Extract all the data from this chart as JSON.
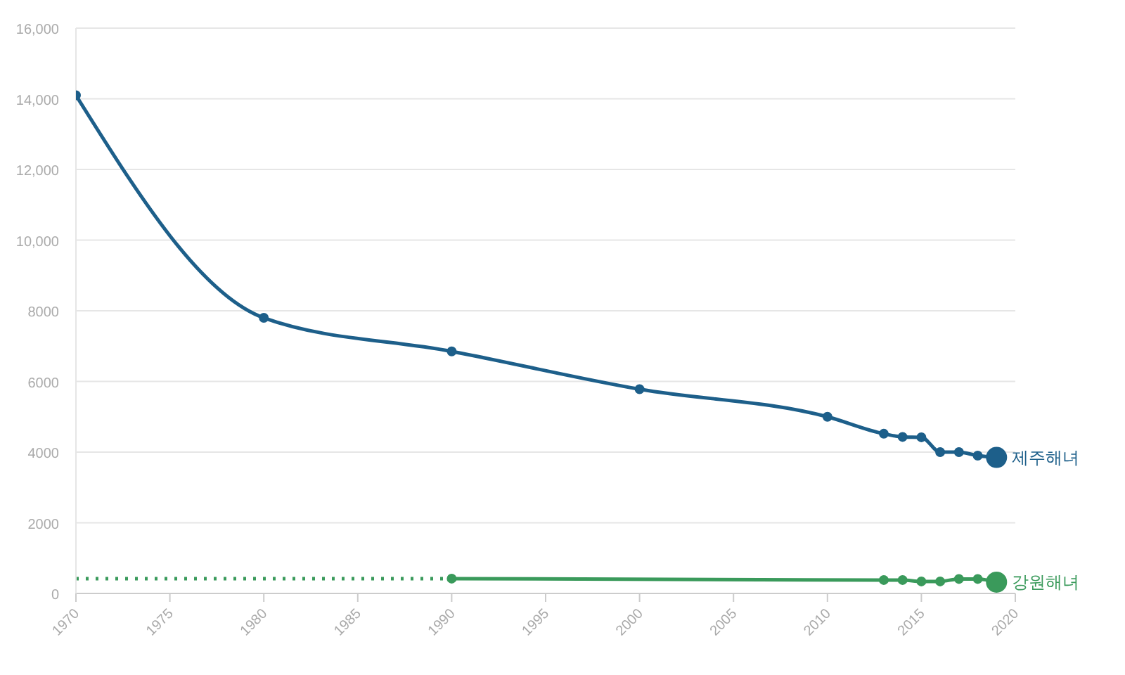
{
  "chart_data": {
    "type": "line",
    "xlim": [
      1970,
      2020
    ],
    "xticks": [
      1970,
      1975,
      1980,
      1985,
      1990,
      1995,
      2000,
      2005,
      2010,
      2015,
      2020
    ],
    "ylim": [
      0,
      16000
    ],
    "yticks": [
      0,
      2000,
      4000,
      6000,
      8000,
      {
        "value": 10000,
        "label": "10,000"
      },
      {
        "value": 12000,
        "label": "12,000"
      },
      {
        "value": 14000,
        "label": "14,000"
      },
      {
        "value": 16000,
        "label": "16,000"
      }
    ],
    "grid": "y",
    "marker": "circle",
    "line_style": "solid",
    "series": [
      {
        "name": "제주해녀",
        "color": "#1d5f8a",
        "x": [
          1970,
          1980,
          1990,
          2000,
          2010,
          2013,
          2014,
          2015,
          2016,
          2017,
          2018,
          2019
        ],
        "values": [
          14100,
          7800,
          6850,
          5780,
          5000,
          4520,
          4430,
          4420,
          4000,
          4000,
          3900,
          3850
        ]
      },
      {
        "name": "강원해녀",
        "color": "#3a9a5b",
        "x": [
          1990,
          2013,
          2014,
          2015,
          2016,
          2017,
          2018,
          2019
        ],
        "values": [
          420,
          380,
          380,
          340,
          340,
          410,
          410,
          320
        ]
      },
      {
        "color": "#3a9a5b",
        "x": [
          1970,
          1990
        ],
        "values": [
          420,
          420
        ],
        "line_style": "dotted",
        "marker": "none"
      }
    ]
  }
}
